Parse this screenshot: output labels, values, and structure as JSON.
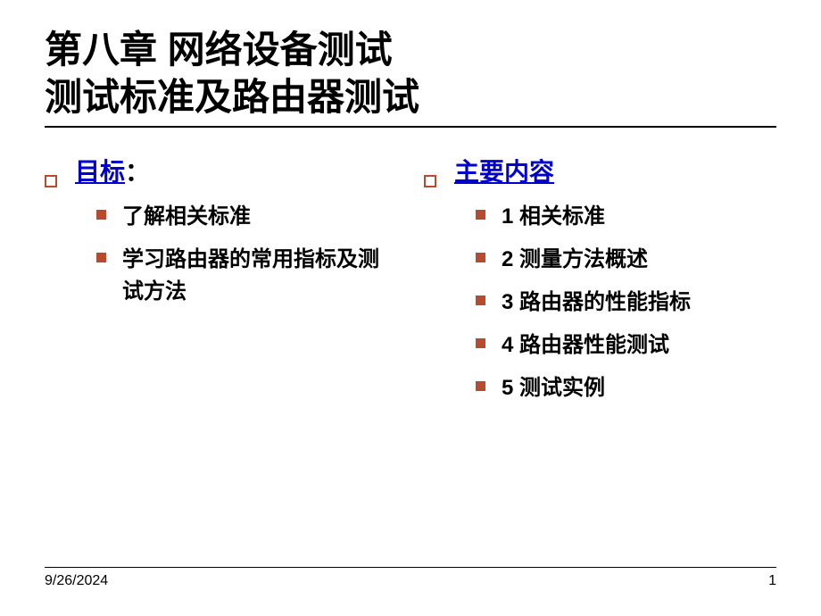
{
  "title": {
    "line1": "第八章 网络设备测试",
    "line2": "测试标准及路由器测试"
  },
  "left": {
    "heading": "目标",
    "colon": "：",
    "items": [
      "了解相关标准",
      "学习路由器的常用指标及测试方法"
    ]
  },
  "right": {
    "heading": "主要内容",
    "items": [
      "1 相关标准",
      "2 测量方法概述",
      "3 路由器的性能指标",
      "4 路由器性能测试",
      "5 测试实例"
    ]
  },
  "footer": {
    "date": "9/26/2024",
    "page": "1"
  },
  "colors": {
    "bullet_accent": "#b94a2e",
    "heading_link": "#0000cc",
    "text": "#000000",
    "background": "#ffffff"
  },
  "typography": {
    "title_fontsize": 42,
    "heading_fontsize": 28,
    "item_fontsize": 24,
    "footer_fontsize": 16
  }
}
